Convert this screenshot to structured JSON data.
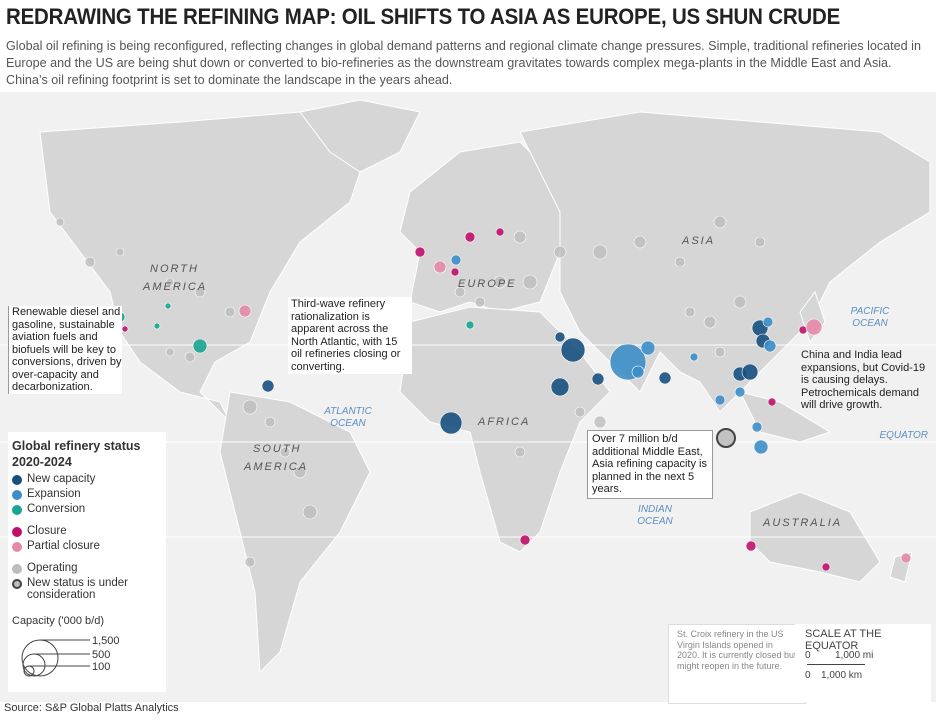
{
  "header": {
    "title": "REDRAWING THE REFINING MAP: OIL SHIFTS TO ASIA AS EUROPE, US SHUN CRUDE",
    "subtitle": "Global oil refining is being reconfigured, reflecting changes in global demand patterns and regional climate change pressures. Simple, traditional refineries located in Europe and the US are being shut down or converted to bio-refineries as the downstream gravitates towards complex mega-plants in the Middle East and Asia. China’s oil refining footprint is set to dominate the landscape in the years ahead."
  },
  "map_labels": {
    "north_america": [
      "NORTH",
      "AMERICA"
    ],
    "south_america": [
      "SOUTH",
      "AMERICA"
    ],
    "europe": "EUROPE",
    "africa": "AFRICA",
    "asia": "ASIA",
    "australia": "AUSTRALIA",
    "atlantic": [
      "ATLANTIC",
      "OCEAN"
    ],
    "pacific": [
      "PACIFIC",
      "OCEAN"
    ],
    "indian": [
      "INDIAN",
      "OCEAN"
    ],
    "equator": "EQUATOR"
  },
  "annotations": {
    "renewable": "Renewable diesel and gasoline, sustainable aviation fuels and biofuels will be key to conversions, driven by over-capacity and decarbonization.",
    "third_wave": "Third-wave refinery rationalization is apparent across the North Atlantic, with 15 oil refineries closing or converting.",
    "china_india": "China and India lead expansions, but Covid-19 is causing delays. Petrochemicals demand will drive growth.",
    "middle_east": "Over 7 million b/d additional Middle East, Asia refining capacity is planned in the next 5 years.",
    "st_croix": "St. Croix refinery in the US Virgin Islands opened in 2020. It is currently closed but might reopen in the future."
  },
  "legend": {
    "title": [
      "Global refinery status",
      "2020-2024"
    ],
    "items": [
      {
        "label": "New capacity",
        "color": "#17507e"
      },
      {
        "label": "Expansion",
        "color": "#3d8ec8"
      },
      {
        "label": "Conversion",
        "color": "#1aa592"
      },
      {
        "label": "Closure",
        "color": "#bf0f6c"
      },
      {
        "label": "Partial closure",
        "color": "#e68aab"
      },
      {
        "label": "Operating",
        "color": "#bdbdbd"
      },
      {
        "label": "New status is under consideration",
        "color": "#bdbdbd"
      }
    ],
    "capacity_title": "Capacity ('000 b/d)",
    "capacity_labels": [
      "1,500",
      "500",
      "100"
    ]
  },
  "scale": {
    "title": "SCALE AT THE EQUATOR",
    "mi": [
      "0",
      "1,000 mi"
    ],
    "km": [
      "0",
      "1,000 km"
    ]
  },
  "source": "Source: S&P Global Platts Analytics"
}
